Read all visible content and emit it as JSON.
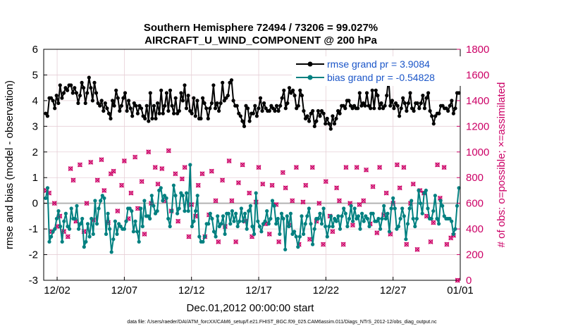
{
  "colors": {
    "rmse": "#000000",
    "bias": "#008080",
    "obs": "#cc0066",
    "grid": "#e6cfd6",
    "zero": "#b3b3b3",
    "legend_text": "#1a55c8"
  },
  "chart_data": {
    "type": "line",
    "title": "Southern Hemisphere 72494 / 73206 = 99.027%",
    "subtitle": "AIRCRAFT_U_WIND_COMPONENT @ 200 hPa",
    "xlabel": "Dec.01,2012 00:00:00 start",
    "ylabel": "rmse and bias (model - observation)",
    "ylabel_right": "# of obs: o=possible; ×=assimilated",
    "xlim": [
      0,
      31
    ],
    "ylim": [
      -3,
      6
    ],
    "ylim_right": [
      0,
      1800
    ],
    "x_ticks": [
      {
        "value": 1,
        "label": "12/02"
      },
      {
        "value": 6,
        "label": "12/07"
      },
      {
        "value": 11,
        "label": "12/12"
      },
      {
        "value": 16,
        "label": "12/17"
      },
      {
        "value": 21,
        "label": "12/22"
      },
      {
        "value": 26,
        "label": "12/27"
      },
      {
        "value": 31,
        "label": "01/01"
      }
    ],
    "y_ticks": [
      "-3",
      "-2",
      "-1",
      "0",
      "1",
      "2",
      "3",
      "4",
      "5",
      "6"
    ],
    "y_ticks_right": [
      "0",
      "200",
      "400",
      "600",
      "800",
      "1000",
      "1200",
      "1400",
      "1600",
      "1800"
    ],
    "grid": true,
    "legend_location": "top-right",
    "series": [
      {
        "name": "rmse grand pr = 3.9084",
        "axis": "left",
        "values": [
          3.5,
          3.4,
          4.1,
          4.1,
          4.0,
          3.7,
          4.2,
          3.9,
          4.6,
          4.1,
          4.3,
          4.5,
          4.4,
          4.6,
          4.6,
          4.3,
          4.5,
          4.3,
          3.9,
          4.2,
          4.7,
          4.5,
          3.9,
          4.3,
          4.9,
          4.5,
          4.0,
          4.7,
          4.3,
          3.9,
          3.8,
          4.0,
          3.6,
          3.9,
          3.7,
          3.5,
          3.3,
          4.0,
          3.8,
          4.4,
          4.1,
          3.6,
          3.8,
          4.1,
          4.3,
          3.6,
          4.0,
          3.7,
          3.4,
          3.9,
          3.8,
          3.5,
          3.8,
          3.7,
          3.4,
          3.3,
          3.8,
          3.2,
          4.3,
          3.3,
          3.8,
          3.3,
          3.9,
          3.5,
          4.4,
          3.5,
          3.8,
          4.3,
          3.6,
          4.4,
          3.8,
          3.5,
          4.1,
          3.5,
          3.6,
          4.3,
          4.0,
          4.6,
          3.7,
          4.2,
          3.6,
          3.5,
          4.1,
          3.4,
          4.0,
          3.3,
          3.3,
          4.1,
          3.9,
          3.7,
          3.3,
          3.7,
          3.9,
          4.6,
          3.7,
          3.9,
          3.6,
          3.9,
          4.7,
          4.0,
          4.1,
          4.2,
          4.7,
          4.8,
          4.0,
          3.8,
          3.8,
          3.5,
          3.4,
          3.2,
          3.0,
          3.8,
          3.7,
          3.2,
          3.5,
          3.5,
          3.8,
          3.4,
          3.7,
          4.1,
          3.6,
          3.9,
          3.7,
          3.6,
          3.6,
          3.8,
          3.7,
          3.6,
          3.8,
          3.6,
          3.8,
          4.1,
          4.4,
          3.7,
          3.9,
          4.5,
          4.3,
          4.4,
          4.2,
          3.7,
          3.8,
          4.4,
          4.2,
          3.6,
          3.3,
          3.4,
          3.2,
          3.5,
          3.6,
          3.0,
          3.2,
          3.6,
          3.4,
          3.6,
          3.5,
          3.1,
          3.3,
          3.1,
          2.9,
          3.4,
          3.1,
          3.3,
          3.6,
          3.5,
          3.8,
          3.8,
          3.7,
          4.0,
          4.0,
          3.8,
          3.7,
          3.8,
          3.7,
          3.7,
          4.3,
          3.8,
          3.9,
          3.8,
          4.3,
          3.8,
          3.7,
          4.4,
          3.7,
          4.4,
          4.2,
          3.7,
          3.9,
          3.7,
          3.8,
          4.2,
          4.9,
          3.8,
          4.0,
          3.7,
          3.9,
          3.8,
          3.4,
          3.7,
          4.1,
          3.9,
          3.6,
          3.9,
          4.3,
          3.7,
          3.6,
          3.9,
          3.9,
          3.7,
          3.9,
          4.2,
          3.7,
          4.1,
          4.3,
          3.6,
          3.4,
          3.1,
          3.4,
          3.5,
          3.5,
          3.8,
          3.8,
          3.7,
          3.7,
          3.6,
          3.8,
          4.0,
          3.5,
          3.7,
          4.3,
          4.3
        ]
      },
      {
        "name": "bias grand pr = -0.54828",
        "axis": "left",
        "values": [
          0.2,
          0.6,
          -1.5,
          -1.3,
          -1.1,
          -1.0,
          -0.6,
          -0.3,
          -0.9,
          -1.5,
          -0.7,
          -0.4,
          -0.9,
          -1.0,
          -0.2,
          -0.6,
          -0.6,
          -0.1,
          -1.0,
          -0.8,
          -0.6,
          -1.7,
          -1.5,
          -0.8,
          -1.3,
          -0.6,
          -1.2,
          0.1,
          -0.8,
          -0.2,
          0.1,
          0.3,
          0.2,
          -1.2,
          -0.4,
          -1.0,
          -1.9,
          -1.4,
          -0.7,
          -1.2,
          -0.8,
          -0.9,
          -1.0,
          -1.0,
          -0.7,
          -0.2,
          -0.2,
          -0.3,
          -1.1,
          -0.7,
          -1.1,
          -1.5,
          -0.2,
          -0.9,
          0.1,
          -0.5,
          -0.5,
          -0.6,
          0.3,
          -0.1,
          -0.4,
          -0.3,
          0.5,
          0.6,
          0.1,
          0.3,
          0.2,
          -0.6,
          -0.9,
          -0.3,
          0.7,
          0.3,
          -0.4,
          -0.2,
          0.4,
          0.3,
          -0.3,
          0.4,
          -0.3,
          1.5,
          -0.9,
          -0.7,
          -0.3,
          0.3,
          -1.3,
          -1.5,
          -1.5,
          -1.3,
          -0.8,
          -0.8,
          -0.4,
          -0.6,
          -1.1,
          -1.3,
          -0.5,
          -0.9,
          -0.8,
          -0.5,
          -1.2,
          -0.4,
          -0.4,
          -0.8,
          -0.3,
          -0.7,
          -0.4,
          -0.9,
          -0.7,
          -0.2,
          -0.7,
          -0.4,
          -1.0,
          -0.3,
          -0.1,
          -0.9,
          -1.2,
          0.4,
          -0.7,
          -0.9,
          -1.1,
          -0.8,
          -0.7,
          -0.3,
          -0.8,
          -0.6,
          0.1,
          -0.1,
          -0.8,
          -0.6,
          -1.2,
          -0.4,
          -0.6,
          -1.8,
          -0.5,
          -0.9,
          -0.4,
          -1.2,
          -1.1,
          -1.3,
          -1.7,
          -1.3,
          -0.5,
          -1.2,
          -0.8,
          -0.5,
          -0.2,
          -0.8,
          -1.6,
          -1.0,
          -0.6,
          -0.6,
          -0.4,
          -0.8,
          -0.2,
          -0.9,
          -1.3,
          -0.9,
          -0.5,
          -0.9,
          -0.6,
          -0.7,
          -0.5,
          -1.0,
          -0.5,
          -0.2,
          -0.4,
          -0.9,
          -0.6,
          -0.1,
          -0.7,
          -0.2,
          -0.6,
          -0.5,
          -1.0,
          -0.4,
          -0.7,
          -0.5,
          -0.6,
          -0.9,
          -0.4,
          -0.4,
          -0.7,
          -0.7,
          -0.6,
          -1.0,
          -0.6,
          -0.1,
          -0.6,
          -0.4,
          -1.1,
          -0.2,
          0.2,
          -0.2,
          -1.0,
          -0.9,
          -0.6,
          -0.2,
          -0.5,
          -1.4,
          -0.8,
          -0.2,
          0.1,
          -0.6,
          -0.9,
          -0.6,
          0.5,
          0.0,
          -0.4,
          0.4,
          0.5,
          -0.2,
          -0.6,
          -0.6,
          -0.3,
          0.3,
          -0.6,
          -0.8,
          0.1,
          -0.1,
          -0.5,
          -0.6,
          -0.6,
          -0.6,
          -0.7,
          -1.2,
          -1.0,
          -0.1,
          0.6
        ]
      }
    ],
    "obs_markers": [
      {
        "x": 0.2,
        "v": 700
      },
      {
        "x": 0.4,
        "v": 680
      },
      {
        "x": 0.6,
        "v": 380
      },
      {
        "x": 0.8,
        "v": 600
      },
      {
        "x": 1.0,
        "v": 420
      },
      {
        "x": 1.2,
        "v": 500
      },
      {
        "x": 1.5,
        "v": 380
      },
      {
        "x": 1.8,
        "v": 340
      },
      {
        "x": 2.0,
        "v": 870
      },
      {
        "x": 2.2,
        "v": 780
      },
      {
        "x": 2.4,
        "v": 460
      },
      {
        "x": 2.7,
        "v": 900
      },
      {
        "x": 3.0,
        "v": 380
      },
      {
        "x": 3.2,
        "v": 600
      },
      {
        "x": 3.5,
        "v": 920
      },
      {
        "x": 3.7,
        "v": 470
      },
      {
        "x": 4.0,
        "v": 780
      },
      {
        "x": 4.3,
        "v": 940
      },
      {
        "x": 4.5,
        "v": 700
      },
      {
        "x": 4.8,
        "v": 450
      },
      {
        "x": 5.0,
        "v": 830
      },
      {
        "x": 5.2,
        "v": 850
      },
      {
        "x": 5.5,
        "v": 540
      },
      {
        "x": 5.8,
        "v": 740
      },
      {
        "x": 6.0,
        "v": 930
      },
      {
        "x": 6.3,
        "v": 480
      },
      {
        "x": 6.5,
        "v": 680
      },
      {
        "x": 6.8,
        "v": 960
      },
      {
        "x": 7.0,
        "v": 560
      },
      {
        "x": 7.3,
        "v": 770
      },
      {
        "x": 7.5,
        "v": 360
      },
      {
        "x": 7.8,
        "v": 1000
      },
      {
        "x": 8.0,
        "v": 600
      },
      {
        "x": 8.3,
        "v": 880
      },
      {
        "x": 8.5,
        "v": 750
      },
      {
        "x": 8.8,
        "v": 870
      },
      {
        "x": 9.0,
        "v": 620
      },
      {
        "x": 9.3,
        "v": 1010
      },
      {
        "x": 9.5,
        "v": 540
      },
      {
        "x": 9.8,
        "v": 830
      },
      {
        "x": 10.0,
        "v": 460
      },
      {
        "x": 10.3,
        "v": 790
      },
      {
        "x": 10.5,
        "v": 880
      },
      {
        "x": 10.8,
        "v": 340
      },
      {
        "x": 11.0,
        "v": 590
      },
      {
        "x": 11.3,
        "v": 500
      },
      {
        "x": 11.5,
        "v": 740
      },
      {
        "x": 11.8,
        "v": 830
      },
      {
        "x": 12.0,
        "v": 340
      },
      {
        "x": 12.3,
        "v": 510
      },
      {
        "x": 12.5,
        "v": 850
      },
      {
        "x": 12.8,
        "v": 620
      },
      {
        "x": 13.0,
        "v": 300
      },
      {
        "x": 13.3,
        "v": 780
      },
      {
        "x": 13.5,
        "v": 420
      },
      {
        "x": 13.8,
        "v": 930
      },
      {
        "x": 14.0,
        "v": 620
      },
      {
        "x": 14.3,
        "v": 300
      },
      {
        "x": 14.5,
        "v": 760
      },
      {
        "x": 14.8,
        "v": 900
      },
      {
        "x": 15.0,
        "v": 460
      },
      {
        "x": 15.3,
        "v": 680
      },
      {
        "x": 15.5,
        "v": 340
      },
      {
        "x": 15.8,
        "v": 610
      },
      {
        "x": 16.0,
        "v": 880
      },
      {
        "x": 16.3,
        "v": 750
      },
      {
        "x": 16.5,
        "v": 440
      },
      {
        "x": 16.8,
        "v": 360
      },
      {
        "x": 17.0,
        "v": 740
      },
      {
        "x": 17.3,
        "v": 590
      },
      {
        "x": 17.5,
        "v": 300
      },
      {
        "x": 17.8,
        "v": 840
      },
      {
        "x": 18.0,
        "v": 720
      },
      {
        "x": 18.3,
        "v": 430
      },
      {
        "x": 18.5,
        "v": 620
      },
      {
        "x": 18.8,
        "v": 880
      },
      {
        "x": 19.0,
        "v": 280
      },
      {
        "x": 19.3,
        "v": 610
      },
      {
        "x": 19.5,
        "v": 740
      },
      {
        "x": 19.8,
        "v": 320
      },
      {
        "x": 20.0,
        "v": 880
      },
      {
        "x": 20.3,
        "v": 460
      },
      {
        "x": 20.5,
        "v": 600
      },
      {
        "x": 20.8,
        "v": 280
      },
      {
        "x": 21.0,
        "v": 770
      },
      {
        "x": 21.3,
        "v": 500
      },
      {
        "x": 21.5,
        "v": 380
      },
      {
        "x": 21.8,
        "v": 720
      },
      {
        "x": 22.0,
        "v": 620
      },
      {
        "x": 22.3,
        "v": 280
      },
      {
        "x": 22.5,
        "v": 880
      },
      {
        "x": 22.8,
        "v": 600
      },
      {
        "x": 23.0,
        "v": 430
      },
      {
        "x": 23.3,
        "v": 880
      },
      {
        "x": 23.5,
        "v": 590
      },
      {
        "x": 23.8,
        "v": 620
      },
      {
        "x": 24.0,
        "v": 860
      },
      {
        "x": 24.3,
        "v": 440
      },
      {
        "x": 24.5,
        "v": 730
      },
      {
        "x": 24.8,
        "v": 370
      },
      {
        "x": 25.0,
        "v": 880
      },
      {
        "x": 25.3,
        "v": 510
      },
      {
        "x": 25.5,
        "v": 680
      },
      {
        "x": 25.8,
        "v": 360
      },
      {
        "x": 26.0,
        "v": 600
      },
      {
        "x": 26.3,
        "v": 900
      },
      {
        "x": 26.5,
        "v": 720
      },
      {
        "x": 26.8,
        "v": 880
      },
      {
        "x": 27.0,
        "v": 280
      },
      {
        "x": 27.3,
        "v": 600
      },
      {
        "x": 27.5,
        "v": 750
      },
      {
        "x": 27.8,
        "v": 240
      },
      {
        "x": 28.0,
        "v": 700
      },
      {
        "x": 28.3,
        "v": 680
      },
      {
        "x": 28.5,
        "v": 500
      },
      {
        "x": 28.8,
        "v": 300
      },
      {
        "x": 29.0,
        "v": 450
      },
      {
        "x": 29.3,
        "v": 900
      },
      {
        "x": 29.5,
        "v": 640
      },
      {
        "x": 29.8,
        "v": 880
      },
      {
        "x": 30.0,
        "v": 280
      },
      {
        "x": 30.3,
        "v": 330
      },
      {
        "x": 30.5,
        "v": 350
      },
      {
        "x": 30.8,
        "v": 0
      }
    ],
    "footer": "data file: /Users/raeder/DAI/ATM_forcXX/CAM6_setup/f.e21.FHIST_BGC.f09_025.CAM6assim.011/Diags_NTrS_2012-12/obs_diag_output.nc"
  }
}
